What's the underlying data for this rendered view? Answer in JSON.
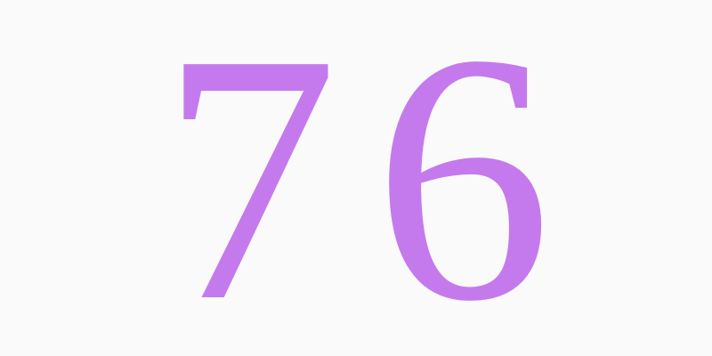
{
  "display": {
    "number": "76",
    "color": "#c47aec",
    "background": "#fafafa"
  }
}
